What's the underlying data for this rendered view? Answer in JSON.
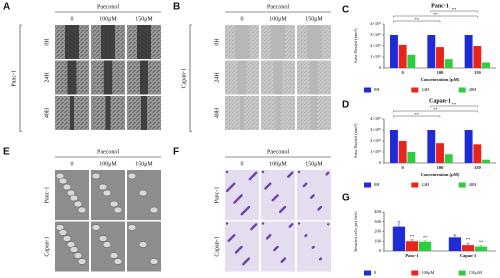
{
  "panels": {
    "A": {
      "label": "A",
      "treatment": "Paeconol",
      "columns": [
        "0",
        "100μM",
        "150μM"
      ],
      "rows": [
        "0H",
        "24H",
        "48H"
      ],
      "cell_line": "Panc-1"
    },
    "B": {
      "label": "B",
      "treatment": "Paeconol",
      "columns": [
        "0",
        "100μM",
        "150μM"
      ],
      "rows": [
        "0H",
        "24H",
        "48H"
      ],
      "cell_line": "Capan-1"
    },
    "E": {
      "label": "E",
      "treatment": "Paeconol",
      "columns": [
        "0",
        "100μM",
        "150μM"
      ],
      "rows": [
        "Panc-1",
        "Capan-1"
      ]
    },
    "F": {
      "label": "F",
      "treatment": "Paeconol",
      "columns": [
        "0",
        "100μM",
        "150μM"
      ],
      "rows": [
        "Panc-1",
        "Capan-1"
      ]
    }
  },
  "chart_data": [
    {
      "type": "bar",
      "panel_label": "C",
      "title": "Panc-1",
      "y_label": "Area Healed (mm²)",
      "x_label": "Concentration (μM)",
      "categories": [
        "0",
        "100",
        "150"
      ],
      "series": [
        {
          "name": "0H",
          "color": "#1f2bd6",
          "values": [
            300000,
            300000,
            300000
          ]
        },
        {
          "name": "24H",
          "color": "#e8241c",
          "values": [
            210000,
            190000,
            200000
          ]
        },
        {
          "name": "48H",
          "color": "#2ecc40",
          "values": [
            120000,
            80000,
            50000
          ]
        }
      ],
      "ylim": [
        0,
        400000
      ],
      "yticks": [
        0,
        {
          "value": 100000,
          "label": "1×10⁵"
        },
        {
          "value": 200000,
          "label": "2×10⁵"
        },
        {
          "value": 300000,
          "label": "3×10⁵"
        },
        {
          "value": 400000,
          "label": "4×10⁵"
        }
      ],
      "annotations": [
        {
          "text": "**",
          "from": 0,
          "to": 1
        },
        {
          "text": "**",
          "from": 0,
          "to": 2
        },
        {
          "text": "**",
          "from": 1,
          "to": 2
        }
      ]
    },
    {
      "type": "bar",
      "panel_label": "D",
      "title": "Capan-1",
      "y_label": "Area Healed (mm²)",
      "x_label": "Concentration (μM)",
      "categories": [
        "0",
        "100",
        "150"
      ],
      "series": [
        {
          "name": "0H",
          "color": "#1f2bd6",
          "values": [
            300000,
            300000,
            300000
          ]
        },
        {
          "name": "24H",
          "color": "#e8241c",
          "values": [
            200000,
            180000,
            170000
          ]
        },
        {
          "name": "48H",
          "color": "#2ecc40",
          "values": [
            100000,
            80000,
            30000
          ]
        }
      ],
      "ylim": [
        0,
        400000
      ],
      "yticks": [
        0,
        {
          "value": 100000,
          "label": "1×10⁵"
        },
        {
          "value": 200000,
          "label": "2×10⁵"
        },
        {
          "value": 300000,
          "label": "3×10⁵"
        },
        {
          "value": 400000,
          "label": "4×10⁵"
        }
      ],
      "annotations": [
        {
          "text": "**",
          "from": 0,
          "to": 1
        },
        {
          "text": "**",
          "from": 0,
          "to": 2
        },
        {
          "text": "**",
          "from": 1,
          "to": 2
        }
      ]
    },
    {
      "type": "bar",
      "panel_label": "G",
      "y_label": "Invaded cells per field",
      "categories": [
        "Panc-1",
        "Capan-1"
      ],
      "series": [
        {
          "name": "0",
          "color": "#1f2bd6",
          "values": [
            250,
            140
          ],
          "errors": [
            50,
            25
          ]
        },
        {
          "name": "100μM",
          "color": "#e8241c",
          "values": [
            100,
            60
          ],
          "errors": [
            15,
            20
          ]
        },
        {
          "name": "150μM",
          "color": "#2ecc40",
          "values": [
            95,
            45
          ],
          "errors": [
            10,
            10
          ]
        }
      ],
      "ylim": [
        0,
        400
      ],
      "yticks": [
        0,
        100,
        200,
        300,
        400
      ],
      "annotations": [
        {
          "text": "**",
          "series": 1,
          "category": 0
        },
        {
          "text": "**",
          "series": 2,
          "category": 0
        },
        {
          "text": "**",
          "series": 1,
          "category": 1
        },
        {
          "text": "**",
          "series": 2,
          "category": 1
        }
      ]
    }
  ]
}
